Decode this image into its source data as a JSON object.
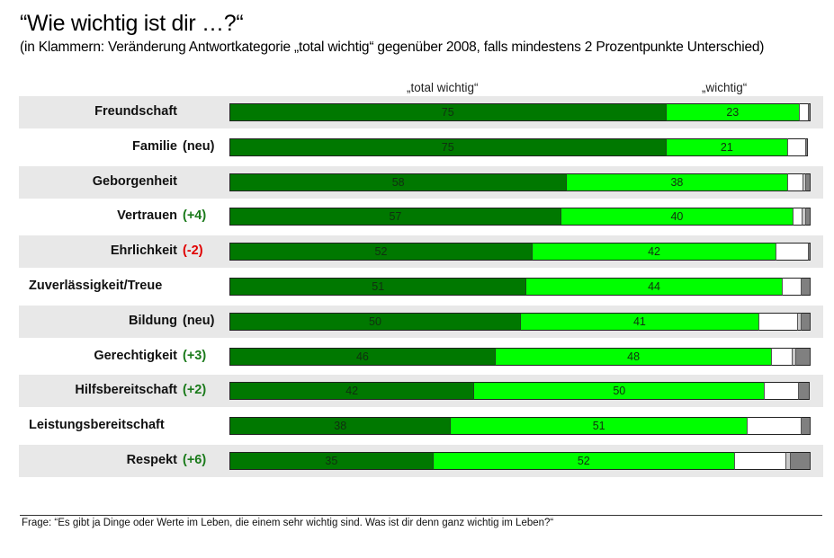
{
  "title": "“Wie wichtig ist dir …?“",
  "subtitle": "(in Klammern: Veränderung Antwortkategorie „total wichtig“ gegenüber 2008, falls mindestens 2 Prozentpunkte Unterschied)",
  "footer": "Frage: “Es gibt ja Dinge oder Werte im Leben, die einem sehr wichtig sind. Was ist dir denn ganz wichtig im Leben?“",
  "chart_data": {
    "type": "bar",
    "orientation": "horizontal",
    "stacked": true,
    "title": "“Wie wichtig ist dir …?“",
    "column_headers": [
      "„total wichtig“",
      "„wichtig“"
    ],
    "colors": {
      "total_wichtig": "#007800",
      "wichtig": "#00ff00",
      "rest1": "#ffffff",
      "rest2": "#c8c8c8",
      "rest3": "#808080",
      "row_shade": "#e8e8e8",
      "positive_change": "#1a7a1a",
      "negative_change": "#e00000"
    },
    "xlim": [
      0,
      100
    ],
    "categories": [
      {
        "label": "Freundschaft",
        "change": ""
      },
      {
        "label": "Familie",
        "change": "(neu)"
      },
      {
        "label": "Geborgenheit",
        "change": ""
      },
      {
        "label": "Vertrauen",
        "change": "(+4)"
      },
      {
        "label": "Ehrlichkeit",
        "change": "(-2)"
      },
      {
        "label": "Zuverlässigkeit/Treue",
        "change": ""
      },
      {
        "label": "Bildung",
        "change": "(neu)"
      },
      {
        "label": "Gerechtigkeit",
        "change": "(+3)"
      },
      {
        "label": "Hilfsbereitschaft",
        "change": "(+2)"
      },
      {
        "label": "Leistungsbereitschaft",
        "change": ""
      },
      {
        "label": "Respekt",
        "change": "(+6)"
      }
    ],
    "series": [
      {
        "name": "total wichtig",
        "values": [
          75,
          75,
          58,
          57,
          52,
          51,
          50,
          46,
          42,
          38,
          35
        ],
        "labeled": true
      },
      {
        "name": "wichtig",
        "values": [
          23,
          21,
          38,
          40,
          42,
          44,
          41,
          48,
          50,
          51,
          52
        ],
        "labeled": true
      },
      {
        "name": "weniger wichtig (unlabeled, white)",
        "values": [
          1.5,
          3,
          2.7,
          1.6,
          5.6,
          3.3,
          6.7,
          3.6,
          5.8,
          9.3,
          8.8
        ],
        "labeled": false
      },
      {
        "name": "unlabeled light gray",
        "values": [
          0,
          0,
          0.4,
          0.5,
          0,
          0,
          0.6,
          0.6,
          0,
          0,
          0.8
        ],
        "labeled": false
      },
      {
        "name": "unlabeled dark gray",
        "values": [
          0.5,
          0.6,
          1,
          1,
          0.4,
          1.7,
          1.7,
          2.6,
          2,
          1.7,
          3.6
        ],
        "labeled": false
      }
    ]
  }
}
